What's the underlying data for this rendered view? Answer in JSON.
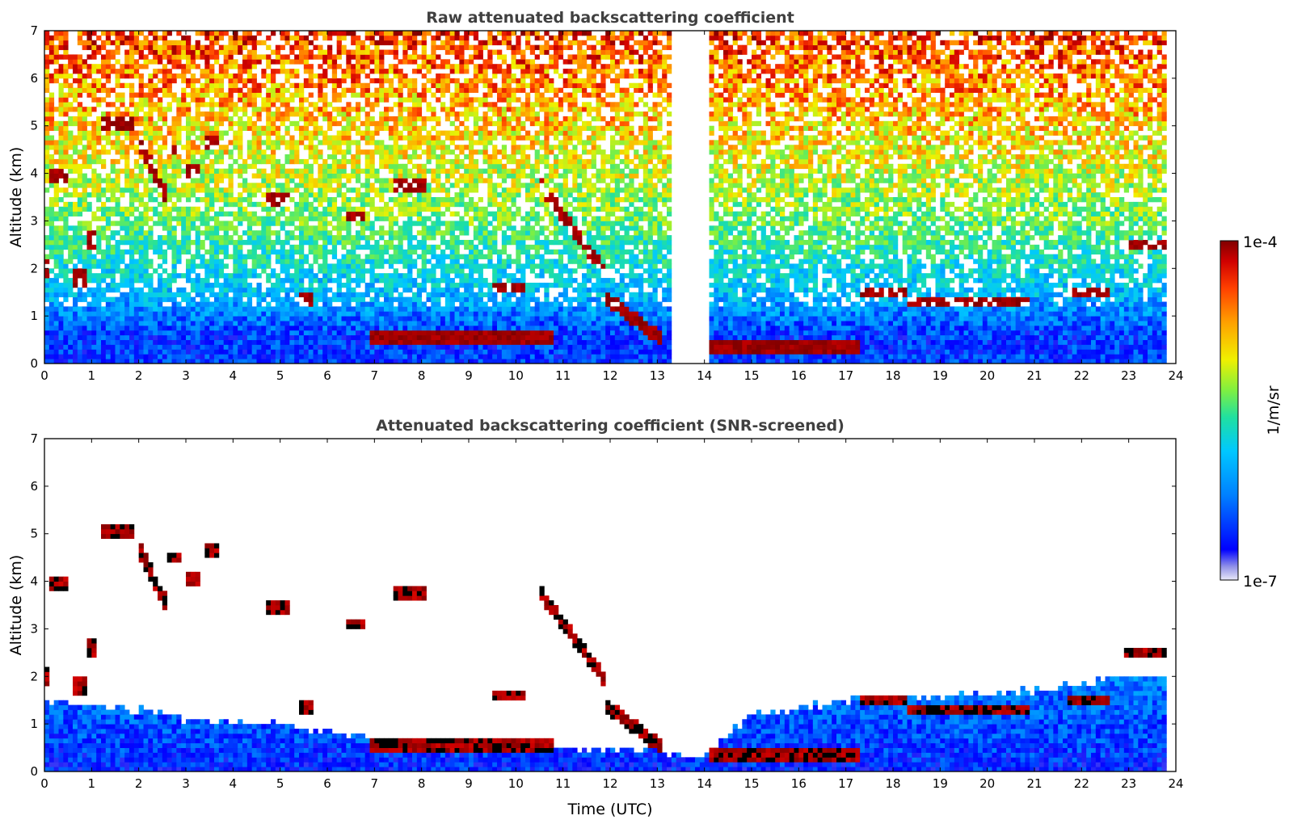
{
  "chart_data": [
    {
      "type": "heatmap",
      "title": "Raw attenuated backscattering coefficient",
      "xlabel": "",
      "ylabel": "Altitude (km)",
      "xlim": [
        0,
        24
      ],
      "ylim": [
        0,
        7
      ],
      "x_ticks": [
        "0",
        "1",
        "2",
        "3",
        "4",
        "5",
        "6",
        "7",
        "8",
        "9",
        "10",
        "11",
        "12",
        "13",
        "14",
        "15",
        "16",
        "17",
        "18",
        "19",
        "20",
        "21",
        "22",
        "23",
        "24"
      ],
      "y_ticks": [
        "0",
        "1",
        "2",
        "3",
        "4",
        "5",
        "6",
        "7"
      ],
      "data_end_time": 23.8,
      "data_gap": [
        13.35,
        14.05
      ],
      "background_profile": [
        {
          "altitude": 0.0,
          "level": 0.22
        },
        {
          "altitude": 0.6,
          "level": 0.22
        },
        {
          "altitude": 1.5,
          "level": 0.35
        },
        {
          "altitude": 3.0,
          "level": 0.52
        },
        {
          "altitude": 5.0,
          "level": 0.68
        },
        {
          "altitude": 7.0,
          "level": 0.84
        }
      ],
      "cloud_layers": [
        {
          "t_start": 0.1,
          "t_end": 0.45,
          "base": 3.85,
          "top": 4.1
        },
        {
          "t_start": 0.05,
          "t_end": 0.15,
          "base": 1.8,
          "top": 2.2
        },
        {
          "t_start": 0.6,
          "t_end": 0.9,
          "base": 1.6,
          "top": 2.0
        },
        {
          "t_start": 0.9,
          "t_end": 1.1,
          "base": 2.4,
          "top": 2.8
        },
        {
          "t_start": 1.2,
          "t_end": 1.9,
          "base": 4.9,
          "top": 5.2
        },
        {
          "t_start": 2.05,
          "t_end": 2.55,
          "base": 3.6,
          "top": 4.6
        },
        {
          "t_start": 2.6,
          "t_end": 2.9,
          "base": 4.4,
          "top": 4.6
        },
        {
          "t_start": 3.0,
          "t_end": 3.3,
          "base": 3.9,
          "top": 4.2
        },
        {
          "t_start": 3.4,
          "t_end": 3.7,
          "base": 4.5,
          "top": 4.8
        },
        {
          "t_start": 4.7,
          "t_end": 5.2,
          "base": 3.3,
          "top": 3.6
        },
        {
          "t_start": 5.4,
          "t_end": 5.7,
          "base": 1.2,
          "top": 1.5
        },
        {
          "t_start": 6.4,
          "t_end": 6.8,
          "base": 3.0,
          "top": 3.2
        },
        {
          "t_start": 7.4,
          "t_end": 8.1,
          "base": 3.6,
          "top": 3.9
        },
        {
          "t_start": 9.5,
          "t_end": 10.2,
          "base": 1.5,
          "top": 1.7
        },
        {
          "t_start": 10.5,
          "t_end": 11.9,
          "base": 1.9,
          "top": 3.8
        },
        {
          "t_start": 11.9,
          "t_end": 13.1,
          "base": 0.5,
          "top": 1.4
        },
        {
          "t_start": 6.9,
          "t_end": 10.8,
          "base": 0.4,
          "top": 0.7
        },
        {
          "t_start": 14.1,
          "t_end": 17.3,
          "base": 0.25,
          "top": 0.45
        },
        {
          "t_start": 17.3,
          "t_end": 18.3,
          "base": 1.4,
          "top": 1.6
        },
        {
          "t_start": 18.3,
          "t_end": 20.9,
          "base": 1.25,
          "top": 1.45
        },
        {
          "t_start": 21.7,
          "t_end": 22.6,
          "base": 1.4,
          "top": 1.55
        },
        {
          "t_start": 22.9,
          "t_end": 23.8,
          "base": 2.4,
          "top": 2.6
        }
      ]
    },
    {
      "type": "heatmap",
      "title": "Attenuated backscattering coefficient (SNR-screened)",
      "xlabel": "Time (UTC)",
      "ylabel": "Altitude (km)",
      "xlim": [
        0,
        24
      ],
      "ylim": [
        0,
        7
      ],
      "x_ticks": [
        "0",
        "1",
        "2",
        "3",
        "4",
        "5",
        "6",
        "7",
        "8",
        "9",
        "10",
        "11",
        "12",
        "13",
        "14",
        "15",
        "16",
        "17",
        "18",
        "19",
        "20",
        "21",
        "22",
        "23",
        "24"
      ],
      "y_ticks": [
        "0",
        "1",
        "2",
        "3",
        "4",
        "5",
        "6",
        "7"
      ],
      "data_end_time": 23.8,
      "boundary_layer_top": [
        {
          "time": 0.0,
          "altitude": 1.5
        },
        {
          "time": 2.0,
          "altitude": 1.3
        },
        {
          "time": 3.0,
          "altitude": 1.1
        },
        {
          "time": 5.0,
          "altitude": 1.0
        },
        {
          "time": 7.0,
          "altitude": 0.7
        },
        {
          "time": 9.0,
          "altitude": 0.6
        },
        {
          "time": 11.0,
          "altitude": 0.5
        },
        {
          "time": 13.0,
          "altitude": 0.4
        },
        {
          "time": 14.0,
          "altitude": 0.3
        },
        {
          "time": 15.0,
          "altitude": 1.2
        },
        {
          "time": 17.0,
          "altitude": 1.5
        },
        {
          "time": 19.0,
          "altitude": 1.6
        },
        {
          "time": 21.0,
          "altitude": 1.7
        },
        {
          "time": 23.0,
          "altitude": 2.0
        },
        {
          "time": 23.8,
          "altitude": 2.0
        }
      ]
    }
  ],
  "colorbar": {
    "label": "1/m/sr",
    "max_label": "1e-4",
    "min_label": "1e-7",
    "colors": [
      "#e8e8f8",
      "#9090e8",
      "#0000ff",
      "#0080ff",
      "#00c8ff",
      "#20e0a0",
      "#80f040",
      "#f0f000",
      "#ffa000",
      "#ff4000",
      "#d00000",
      "#800000"
    ]
  }
}
